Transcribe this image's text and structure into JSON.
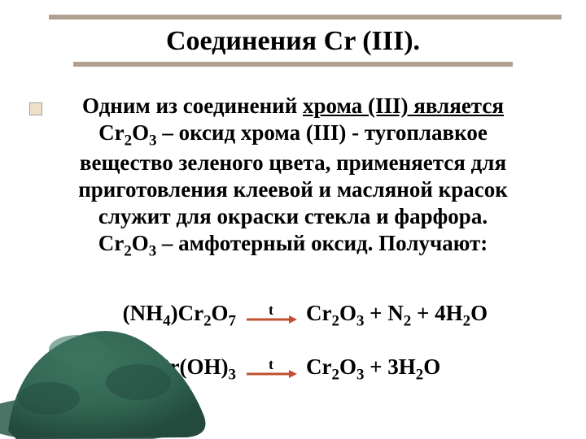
{
  "title": "Соединения Cr (III).",
  "text_lines": [
    "Одним из соединений <u>хрома (III) является</u>",
    "Cr<sub>2</sub>O<sub>3</sub> – оксид хрома (III) - тугоплавкое",
    "вещество зеленого цвета, применяется для",
    "приготовления клеевой и масляной красок",
    "служит для окраски стекла и фарфора.",
    "Cr<sub>2</sub>O<sub>3</sub> – амфотерный оксид. Получают:"
  ],
  "equations": [
    {
      "left": "(NH<sub>4</sub>)Cr<sub>2</sub>O<sub>7</sub>",
      "label": "t",
      "right": "Cr<sub>2</sub>O<sub>3</sub> + N<sub>2</sub> + 4H<sub>2</sub>O"
    },
    {
      "left": "2Cr(OH)<sub>3</sub>",
      "label": "t",
      "right": "Cr<sub>2</sub>O<sub>3</sub> + 3H<sub>2</sub>O"
    }
  ],
  "colors": {
    "line": "#b0a090",
    "powder_dark": "#2a5a4a",
    "powder_mid": "#316652",
    "powder_light": "#3d7560",
    "arrow": "#c05030"
  }
}
